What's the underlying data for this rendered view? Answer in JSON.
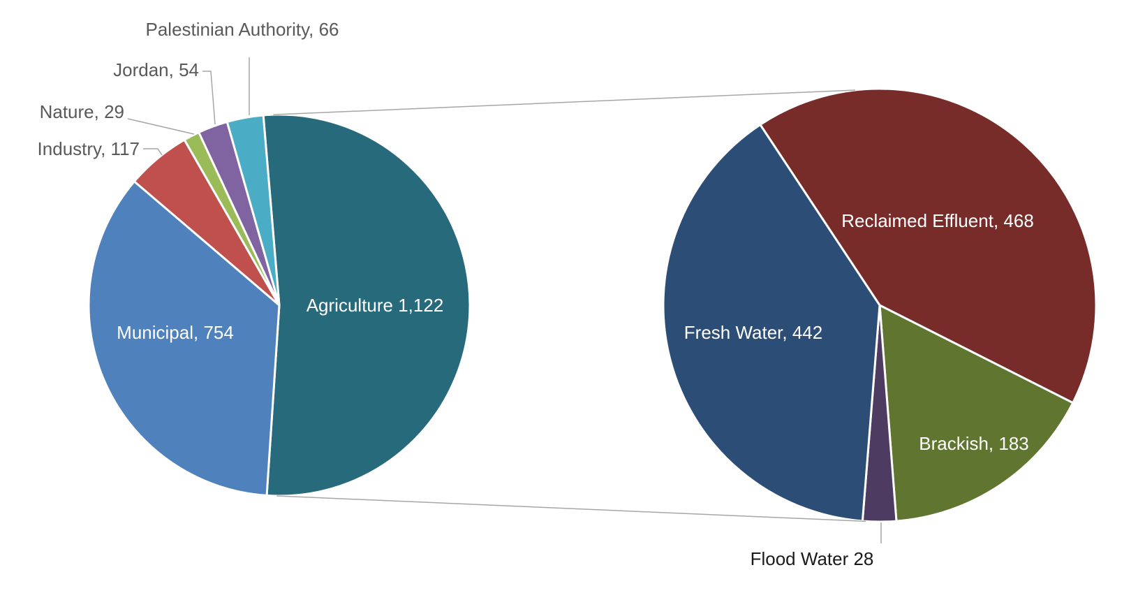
{
  "chart_data": [
    {
      "type": "pie",
      "values": [
        1122,
        754,
        117,
        29,
        54,
        66
      ],
      "value_labels": [
        "Agriculture 1,122",
        "Municipal, 754",
        "Industry, 117",
        "Nature, 29",
        "Jordan, 54",
        "Palestinian Authority, 66"
      ],
      "colors": [
        "#276a7c",
        "#4f81bd",
        "#c0504d",
        "#9bbb59",
        "#8064a2",
        "#4bacc6"
      ]
    },
    {
      "type": "pie",
      "values": [
        468,
        183,
        28,
        442
      ],
      "value_labels": [
        "Reclaimed Effluent, 468",
        "Brackish, 183",
        "Flood Water 28",
        "Fresh Water, 442"
      ],
      "colors": [
        "#772c2a",
        "#5f7530",
        "#4d3b62",
        "#2c4d75"
      ]
    }
  ]
}
